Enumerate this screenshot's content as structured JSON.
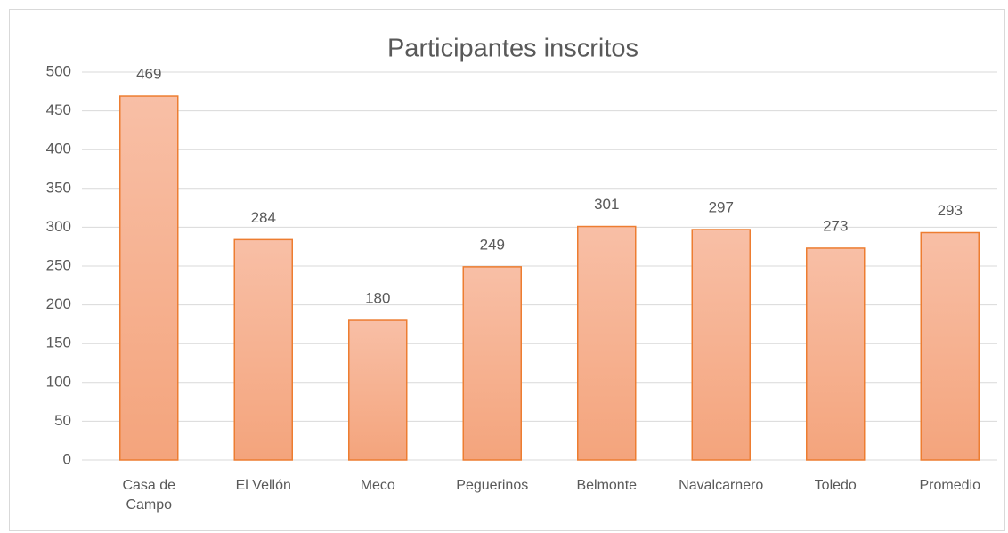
{
  "chart_data": {
    "type": "bar",
    "title": "Participantes inscritos",
    "categories": [
      "Casa de Campo",
      "El Vellón",
      "Meco",
      "Peguerinos",
      "Belmonte",
      "Navalcarnero",
      "Toledo",
      "Promedio"
    ],
    "values": [
      469,
      284,
      180,
      249,
      301,
      297,
      273,
      293
    ],
    "color": "#ed7d31",
    "ylim": [
      0,
      500
    ],
    "yticks": [
      0,
      50,
      100,
      150,
      200,
      250,
      300,
      350,
      400,
      450,
      500
    ],
    "grid": true
  }
}
